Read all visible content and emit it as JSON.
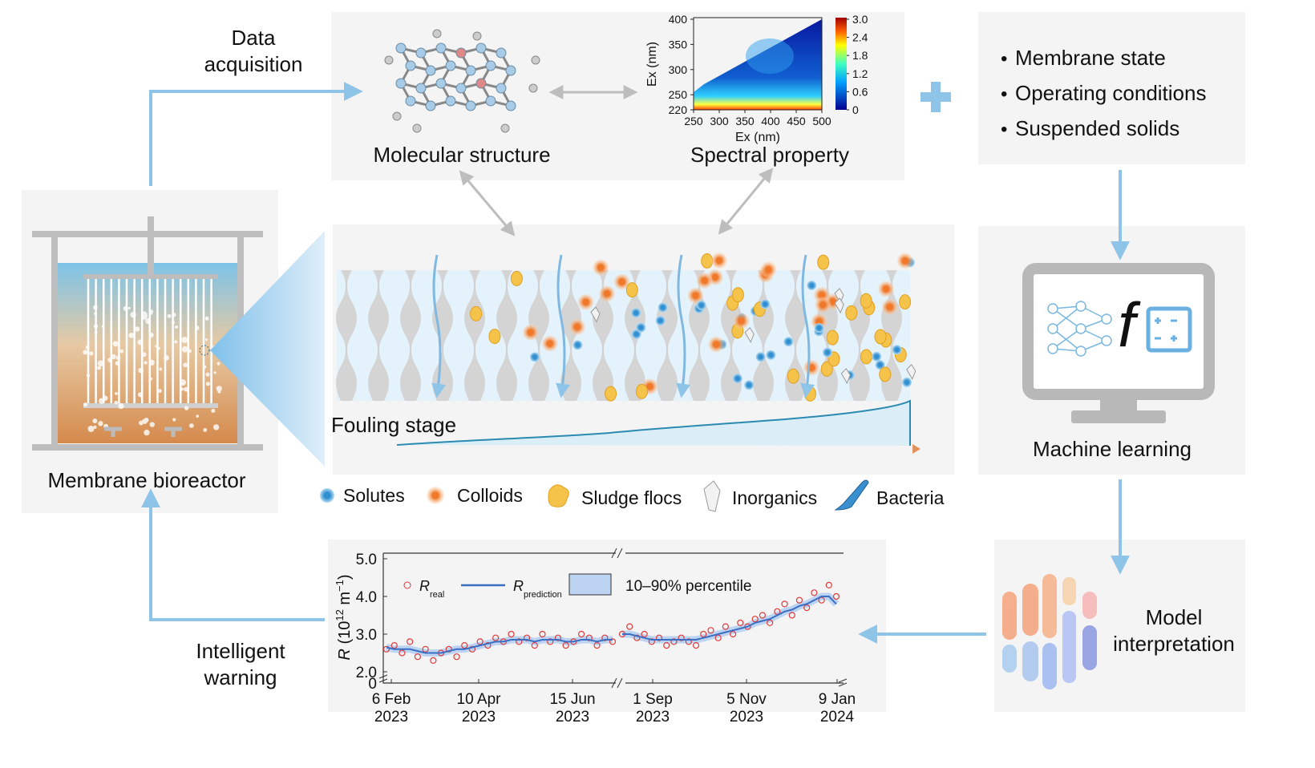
{
  "acquisition_label": [
    "Data",
    "acquisition"
  ],
  "molecular_label": "Molecular structure",
  "spectral": {
    "label": "Spectral property",
    "ylabel": "Ex (nm)",
    "xlabel": "Ex (nm)",
    "ylim": [
      220,
      400
    ],
    "yticks": [
      400,
      350,
      300,
      250,
      220
    ],
    "xlim": [
      250,
      500
    ],
    "xticks": [
      250,
      300,
      350,
      400,
      450,
      500
    ],
    "clim": [
      0,
      3
    ],
    "cticks": [
      {
        "value": 3,
        "label": "3.0"
      },
      {
        "value": 2.4,
        "label": "2.4"
      },
      {
        "value": 1.8,
        "label": "1.8"
      },
      {
        "value": 1.2,
        "label": "1.2"
      },
      {
        "value": 0.6,
        "label": "0.6"
      },
      0
    ]
  },
  "factors": [
    "Membrane state",
    "Operating conditions",
    "Suspended solids"
  ],
  "bullet": "•",
  "mbr_label": "Membrane bioreactor",
  "fouling_label": "Fouling stage",
  "legend": [
    "Solutes",
    "Colloids",
    "Sludge flocs",
    "Inorganics",
    "Bacteria"
  ],
  "ml_label": "Machine learning",
  "ml_symbol": "f",
  "interpretation_label": [
    "Model",
    "interpretation"
  ],
  "warning_label": [
    "Intelligent",
    "warning"
  ],
  "fouling_chart": {
    "ylabel": {
      "symbol": "R",
      "open": " (10",
      "exp": "12",
      "unit": " m",
      "unit_exp": "−1",
      "close": ")"
    },
    "ylim": [
      2,
      5
    ],
    "yticks": [
      {
        "value": 5,
        "label": "5.0"
      },
      {
        "value": 4,
        "label": "4.0"
      },
      {
        "value": 3,
        "label": "3.0"
      },
      {
        "value": 2,
        "label": "2.0"
      }
    ],
    "y_break_label": "0",
    "xticks": [
      [
        "6 Feb",
        "2023"
      ],
      [
        "10 Apr",
        "2023"
      ],
      [
        "15 Jun",
        "2023"
      ],
      [
        "1 Sep",
        "2023"
      ],
      [
        "5 Nov",
        "2023"
      ],
      [
        "9 Jan",
        "2024"
      ]
    ],
    "legend": {
      "real_symbol": "R",
      "real_sub": "real",
      "pred_symbol": "R",
      "pred_sub": "prediction",
      "band": "10–90% percentile"
    },
    "segments": [
      {
        "real": [
          2.6,
          2.7,
          2.5,
          2.8,
          2.4,
          2.6,
          2.3,
          2.5,
          2.6,
          2.4,
          2.7,
          2.6,
          2.8,
          2.7,
          2.9,
          2.8,
          3.0,
          2.8,
          2.9,
          2.7,
          3.0,
          2.8,
          2.9,
          2.7,
          2.8,
          3.0,
          2.9,
          2.7,
          2.9,
          2.8
        ],
        "prediction": [
          2.65,
          2.6,
          2.6,
          2.6,
          2.55,
          2.5,
          2.5,
          2.5,
          2.55,
          2.6,
          2.6,
          2.65,
          2.7,
          2.75,
          2.8,
          2.8,
          2.85,
          2.85,
          2.85,
          2.8,
          2.85,
          2.85,
          2.85,
          2.8,
          2.8,
          2.85,
          2.85,
          2.8,
          2.85,
          2.85
        ]
      },
      {
        "real": [
          3.0,
          3.2,
          2.9,
          3.0,
          2.8,
          2.9,
          2.7,
          2.8,
          2.9,
          2.8,
          2.7,
          3.0,
          3.1,
          2.9,
          3.2,
          3.0,
          3.3,
          3.2,
          3.4,
          3.5,
          3.3,
          3.6,
          3.8,
          3.5,
          3.9,
          3.7,
          4.1,
          3.9,
          4.3,
          4.0
        ],
        "prediction": [
          3.0,
          3.0,
          2.95,
          2.9,
          2.85,
          2.85,
          2.85,
          2.85,
          2.85,
          2.85,
          2.85,
          2.9,
          2.95,
          3.0,
          3.05,
          3.1,
          3.15,
          3.2,
          3.3,
          3.35,
          3.4,
          3.5,
          3.6,
          3.65,
          3.75,
          3.8,
          3.9,
          4.0,
          4.0,
          3.8
        ]
      }
    ]
  }
}
